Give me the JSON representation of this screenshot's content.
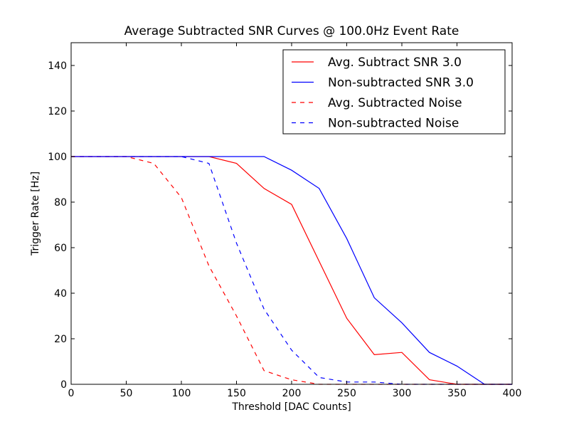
{
  "chart_data": {
    "type": "line",
    "title": "Average Subtracted SNR Curves @ 100.0Hz Event Rate",
    "xlabel": "Threshold [DAC Counts]",
    "ylabel": "Trigger Rate [Hz]",
    "xlim": [
      0,
      400
    ],
    "ylim": [
      0,
      150
    ],
    "xticks": [
      0,
      50,
      100,
      150,
      200,
      250,
      300,
      350,
      400
    ],
    "yticks": [
      0,
      20,
      40,
      60,
      80,
      100,
      120,
      140
    ],
    "grid": false,
    "legend_position": "top-right",
    "series": [
      {
        "name": "Avg. Subtract SNR 3.0",
        "color": "#ff0000",
        "dash": "solid",
        "x": [
          0,
          25,
          50,
          75,
          100,
          125,
          150,
          175,
          200,
          225,
          250,
          275,
          300,
          325,
          350,
          375,
          400
        ],
        "y": [
          100,
          100,
          100,
          100,
          100,
          100,
          97,
          86,
          79,
          54,
          29,
          13,
          14,
          2,
          0,
          0,
          0
        ]
      },
      {
        "name": "Non-subtracted SNR 3.0",
        "color": "#0000ff",
        "dash": "solid",
        "x": [
          0,
          25,
          50,
          75,
          100,
          125,
          150,
          175,
          200,
          225,
          250,
          275,
          300,
          325,
          350,
          375,
          400
        ],
        "y": [
          100,
          100,
          100,
          100,
          100,
          100,
          100,
          100,
          94,
          86,
          64,
          38,
          27,
          14,
          8,
          0,
          0
        ]
      },
      {
        "name": "Avg. Subtracted Noise",
        "color": "#ff0000",
        "dash": "dashed",
        "x": [
          0,
          25,
          50,
          75,
          100,
          125,
          150,
          175,
          200,
          225,
          250,
          275,
          300,
          325,
          350,
          375,
          400
        ],
        "y": [
          100,
          100,
          100,
          97,
          82,
          52,
          30,
          6,
          2,
          0,
          0,
          0,
          0,
          0,
          0,
          0,
          0
        ]
      },
      {
        "name": "Non-subtracted Noise",
        "color": "#0000ff",
        "dash": "dashed",
        "x": [
          0,
          25,
          50,
          75,
          100,
          125,
          150,
          175,
          200,
          225,
          250,
          275,
          300,
          325,
          350,
          375,
          400
        ],
        "y": [
          100,
          100,
          100,
          100,
          100,
          97,
          62,
          33,
          15,
          3,
          1,
          1,
          0,
          0,
          0,
          0,
          0
        ]
      }
    ]
  }
}
